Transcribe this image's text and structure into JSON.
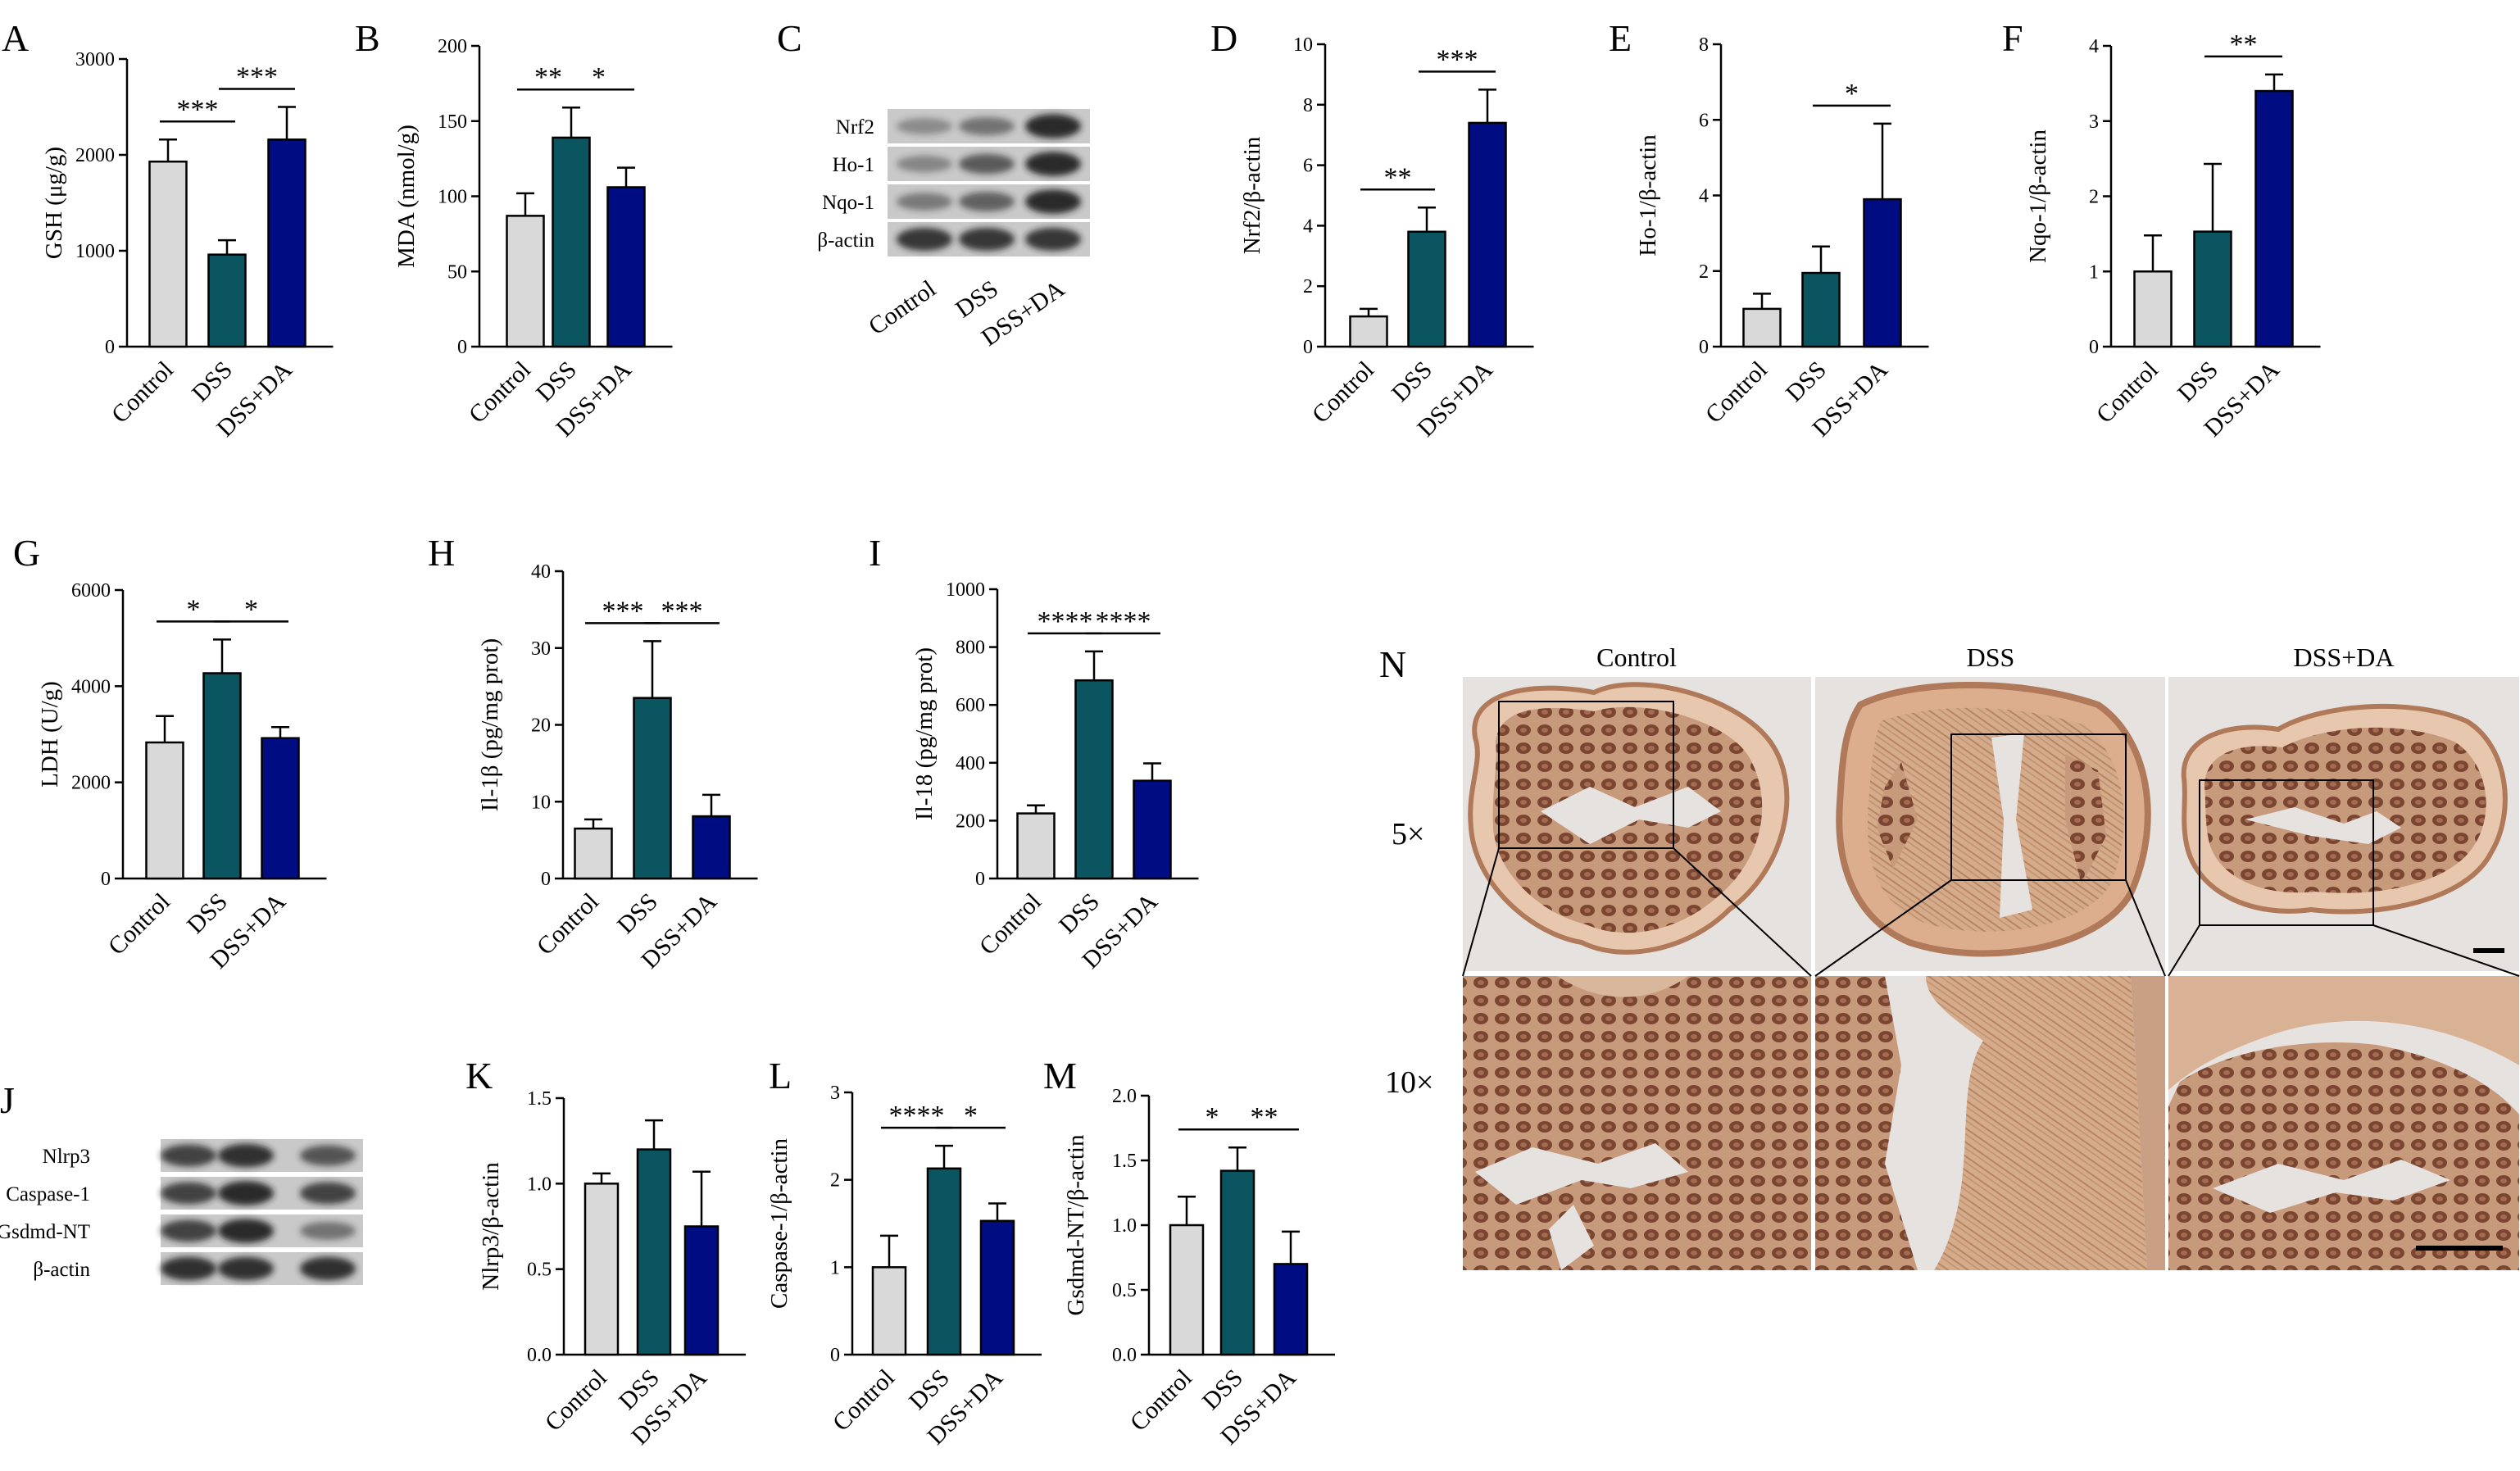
{
  "colors": {
    "control": "#d9d9d9",
    "dss": "#0b5561",
    "dssda": "#000d82",
    "blot_band": "#1f1f1f",
    "tissue": "#b98a6c",
    "tissue_dark": "#6f3f2a"
  },
  "categories": [
    "Control",
    "DSS",
    "DSS+DA"
  ],
  "chart_data": [
    {
      "panel": "A",
      "type": "bar",
      "ylabel": "GSH (μg/g)",
      "ylim": [
        0,
        3000
      ],
      "ticks": [
        "0",
        "1000",
        "2000",
        "3000"
      ],
      "values": [
        1930,
        960,
        2160
      ],
      "errors": [
        230,
        150,
        340
      ],
      "sig": [
        {
          "from": 0,
          "to": 1,
          "label": "***"
        },
        {
          "from": 1,
          "to": 2,
          "label": "***"
        }
      ]
    },
    {
      "panel": "B",
      "type": "bar",
      "ylabel": "MDA (nmol/g)",
      "ylim": [
        0,
        200
      ],
      "ticks": [
        "0",
        "50",
        "100",
        "150",
        "200"
      ],
      "values": [
        87,
        139,
        106
      ],
      "errors": [
        15,
        20,
        13
      ],
      "sig": [
        {
          "from": 0,
          "to": 1,
          "label": "**"
        },
        {
          "from": 1,
          "to": 2,
          "label": "*"
        }
      ]
    },
    {
      "panel": "D",
      "type": "bar",
      "ylabel": "Nrf2/β-actin",
      "ylim": [
        0,
        10
      ],
      "ticks": [
        "0",
        "2",
        "4",
        "6",
        "8",
        "10"
      ],
      "values": [
        1.0,
        3.8,
        7.4
      ],
      "errors": [
        0.25,
        0.8,
        1.1
      ],
      "sig": [
        {
          "from": 0,
          "to": 1,
          "label": "**"
        },
        {
          "from": 1,
          "to": 2,
          "label": "***"
        }
      ]
    },
    {
      "panel": "E",
      "type": "bar",
      "ylabel": "Ho-1/β-actin",
      "ylim": [
        0,
        8
      ],
      "ticks": [
        "0",
        "2",
        "4",
        "6",
        "8"
      ],
      "values": [
        1.0,
        1.95,
        3.9
      ],
      "errors": [
        0.4,
        0.7,
        2.0
      ],
      "sig": [
        {
          "from": 1,
          "to": 2,
          "label": "*"
        }
      ]
    },
    {
      "panel": "F",
      "type": "bar",
      "ylabel": "Nqo-1/β-actin",
      "ylim": [
        0,
        4
      ],
      "ticks": [
        "0",
        "1",
        "2",
        "3",
        "4"
      ],
      "values": [
        1.0,
        1.53,
        3.4
      ],
      "errors": [
        0.48,
        0.9,
        0.22
      ],
      "sig": [
        {
          "from": 1,
          "to": 2,
          "label": "**"
        }
      ]
    },
    {
      "panel": "G",
      "type": "bar",
      "ylabel": "LDH (U/g)",
      "ylim": [
        0,
        6000
      ],
      "ticks": [
        "0",
        "2000",
        "4000",
        "6000"
      ],
      "values": [
        2830,
        4270,
        2920
      ],
      "errors": [
        550,
        700,
        230
      ],
      "sig": [
        {
          "from": 0,
          "to": 1,
          "label": "*"
        },
        {
          "from": 1,
          "to": 2,
          "label": "*"
        }
      ]
    },
    {
      "panel": "H",
      "type": "bar",
      "ylabel": "Il-1β (pg/mg prot)",
      "ylim": [
        0,
        40
      ],
      "ticks": [
        "0",
        "10",
        "20",
        "30",
        "40"
      ],
      "values": [
        6.5,
        23.5,
        8.1
      ],
      "errors": [
        1.2,
        7.4,
        2.8
      ],
      "sig": [
        {
          "from": 0,
          "to": 1,
          "label": "***"
        },
        {
          "from": 1,
          "to": 2,
          "label": "***"
        }
      ]
    },
    {
      "panel": "I",
      "type": "bar",
      "ylabel": "Il-18 (pg/mg prot)",
      "ylim": [
        0,
        1000
      ],
      "ticks": [
        "0",
        "200",
        "400",
        "600",
        "800",
        "1000"
      ],
      "values": [
        225,
        685,
        338
      ],
      "errors": [
        28,
        100,
        60
      ],
      "sig": [
        {
          "from": 0,
          "to": 1,
          "label": "****"
        },
        {
          "from": 1,
          "to": 2,
          "label": "****"
        }
      ]
    },
    {
      "panel": "K",
      "type": "bar",
      "ylabel": "Nlrp3/β-actin",
      "ylim": [
        0,
        1.5
      ],
      "ticks": [
        "0.0",
        "0.5",
        "1.0",
        "1.5"
      ],
      "values": [
        1.0,
        1.2,
        0.75
      ],
      "errors": [
        0.06,
        0.17,
        0.32
      ],
      "sig": []
    },
    {
      "panel": "L",
      "type": "bar",
      "ylabel": "Caspase-1/β-actin",
      "ylim": [
        0,
        3
      ],
      "ticks": [
        "0",
        "1",
        "2",
        "3"
      ],
      "values": [
        1.0,
        2.13,
        1.53
      ],
      "errors": [
        0.36,
        0.26,
        0.2
      ],
      "sig": [
        {
          "from": 0,
          "to": 1,
          "label": "****"
        },
        {
          "from": 1,
          "to": 2,
          "label": "*"
        }
      ]
    },
    {
      "panel": "M",
      "type": "bar",
      "ylabel": "Gsdmd-NT/β-actin",
      "ylim": [
        0,
        2
      ],
      "ticks": [
        "0.0",
        "0.5",
        "1.0",
        "1.5",
        "2.0"
      ],
      "values": [
        1.0,
        1.42,
        0.7
      ],
      "errors": [
        0.22,
        0.18,
        0.25
      ],
      "sig": [
        {
          "from": 0,
          "to": 1,
          "label": "*"
        },
        {
          "from": 1,
          "to": 2,
          "label": "**"
        }
      ]
    }
  ],
  "blots": [
    {
      "panel": "C",
      "rows": [
        {
          "label": "Nrf2",
          "intensity": [
            0.15,
            0.35,
            0.95
          ]
        },
        {
          "label": "Ho-1",
          "intensity": [
            0.2,
            0.55,
            0.95
          ]
        },
        {
          "label": "Nqo-1",
          "intensity": [
            0.3,
            0.5,
            0.95
          ]
        },
        {
          "label": "β-actin",
          "intensity": [
            0.85,
            0.85,
            0.85
          ]
        }
      ]
    },
    {
      "panel": "J",
      "rows": [
        {
          "label": "Nlrp3",
          "intensity": [
            0.75,
            0.9,
            0.6
          ]
        },
        {
          "label": "Caspase-1",
          "intensity": [
            0.75,
            0.95,
            0.75
          ]
        },
        {
          "label": "Gsdmd-NT",
          "intensity": [
            0.75,
            0.95,
            0.35
          ]
        },
        {
          "label": "β-actin",
          "intensity": [
            0.9,
            0.9,
            0.9
          ]
        }
      ]
    }
  ],
  "histology": {
    "panel": "N",
    "columns": [
      "Control",
      "DSS",
      "DSS+DA"
    ],
    "rows": [
      "5×",
      "10×"
    ]
  }
}
